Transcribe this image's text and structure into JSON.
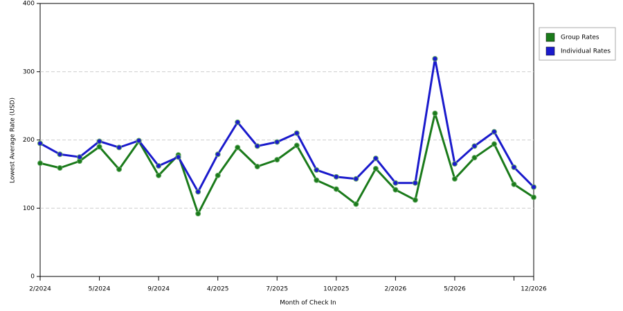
{
  "chart_data": {
    "type": "line",
    "x_label": "Month of Check In",
    "y_label": "Lowest Average Rate (USD)",
    "categories": [
      "2/2024",
      null,
      null,
      "5/2024",
      null,
      null,
      "9/2024",
      null,
      null,
      "4/2025",
      null,
      null,
      "7/2025",
      null,
      null,
      "10/2025",
      null,
      null,
      "2/2026",
      null,
      null,
      "5/2026",
      null,
      null,
      null,
      "12/2026"
    ],
    "series": [
      {
        "name": "Group Rates",
        "color": "#1a7a1a",
        "values": [
          166,
          159,
          169,
          190,
          157,
          198,
          148,
          178,
          92,
          148,
          189,
          161,
          171,
          192,
          141,
          128,
          106,
          158,
          127,
          112,
          239,
          143,
          174,
          194,
          135,
          116
        ]
      },
      {
        "name": "Individual Rates",
        "color": "#1a1acc",
        "values": [
          195,
          179,
          175,
          198,
          189,
          199,
          162,
          175,
          124,
          179,
          226,
          191,
          197,
          210,
          156,
          146,
          143,
          173,
          137,
          137,
          319,
          165,
          191,
          212,
          160,
          131
        ]
      }
    ],
    "ylim": [
      0,
      400
    ],
    "yticks": [
      0,
      100,
      200,
      300,
      400
    ],
    "grid": true,
    "legend": "right"
  }
}
